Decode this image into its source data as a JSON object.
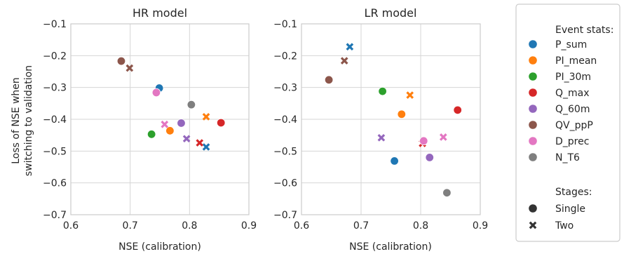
{
  "ylabel_lines": [
    "Loss of NSE when",
    "switching to validation"
  ],
  "legend": {
    "event_header": "Event stats:",
    "stages_header": "Stages:",
    "events": [
      {
        "name": "P_sum",
        "color": "#1f77b4"
      },
      {
        "name": "PI_mean",
        "color": "#ff7f0e"
      },
      {
        "name": "PI_30m",
        "color": "#2ca02c"
      },
      {
        "name": "Q_max",
        "color": "#d62728"
      },
      {
        "name": "Q_60m",
        "color": "#9467bd"
      },
      {
        "name": "QV_ppP",
        "color": "#8c564b"
      },
      {
        "name": "D_prec",
        "color": "#e377c2"
      },
      {
        "name": "N_T6",
        "color": "#7f7f7f"
      }
    ],
    "stages": [
      {
        "name": "Single",
        "marker": "circle"
      },
      {
        "name": "Two",
        "marker": "x"
      }
    ]
  },
  "chart_data": [
    {
      "type": "scatter",
      "title": "HR model",
      "xlabel": "NSE (calibration)",
      "ylabel": "Loss of NSE when switching to validation",
      "xlim": [
        0.6,
        0.9
      ],
      "ylim": [
        -0.7,
        -0.1
      ],
      "xticks": [
        "0.6",
        "0.7",
        "0.8",
        "0.9"
      ],
      "xtick_values": [
        0.6,
        0.7,
        0.8,
        0.9
      ],
      "yticks": [
        "−0.7",
        "−0.6",
        "−0.5",
        "−0.4",
        "−0.3",
        "−0.2",
        "−0.1"
      ],
      "ytick_values": [
        -0.7,
        -0.6,
        -0.5,
        -0.4,
        -0.3,
        -0.2,
        -0.1
      ],
      "grid": true,
      "points": [
        {
          "event": "P_sum",
          "stage": "Single",
          "x": 0.749,
          "y": -0.302
        },
        {
          "event": "P_sum",
          "stage": "Two",
          "x": 0.828,
          "y": -0.487
        },
        {
          "event": "PI_mean",
          "stage": "Single",
          "x": 0.767,
          "y": -0.436
        },
        {
          "event": "PI_mean",
          "stage": "Two",
          "x": 0.828,
          "y": -0.392
        },
        {
          "event": "PI_30m",
          "stage": "Single",
          "x": 0.736,
          "y": -0.447
        },
        {
          "event": "Q_max",
          "stage": "Single",
          "x": 0.853,
          "y": -0.411
        },
        {
          "event": "Q_max",
          "stage": "Two",
          "x": 0.817,
          "y": -0.474
        },
        {
          "event": "Q_60m",
          "stage": "Single",
          "x": 0.786,
          "y": -0.412
        },
        {
          "event": "Q_60m",
          "stage": "Two",
          "x": 0.795,
          "y": -0.461
        },
        {
          "event": "QV_ppP",
          "stage": "Single",
          "x": 0.685,
          "y": -0.217
        },
        {
          "event": "QV_ppP",
          "stage": "Two",
          "x": 0.699,
          "y": -0.239
        },
        {
          "event": "D_prec",
          "stage": "Single",
          "x": 0.744,
          "y": -0.316
        },
        {
          "event": "D_prec",
          "stage": "Two",
          "x": 0.758,
          "y": -0.416
        },
        {
          "event": "N_T6",
          "stage": "Single",
          "x": 0.803,
          "y": -0.354
        }
      ]
    },
    {
      "type": "scatter",
      "title": "LR model",
      "xlabel": "NSE (calibration)",
      "ylabel": "",
      "xlim": [
        0.6,
        0.9
      ],
      "ylim": [
        -0.7,
        -0.1
      ],
      "xticks": [
        "0.6",
        "0.7",
        "0.8",
        "0.9"
      ],
      "xtick_values": [
        0.6,
        0.7,
        0.8,
        0.9
      ],
      "yticks": [
        "−0.7",
        "−0.6",
        "−0.5",
        "−0.4",
        "−0.3",
        "−0.2",
        "−0.1"
      ],
      "ytick_values": [
        -0.7,
        -0.6,
        -0.5,
        -0.4,
        -0.3,
        -0.2,
        -0.1
      ],
      "grid": true,
      "points": [
        {
          "event": "P_sum",
          "stage": "Single",
          "x": 0.756,
          "y": -0.531
        },
        {
          "event": "P_sum",
          "stage": "Two",
          "x": 0.681,
          "y": -0.172
        },
        {
          "event": "PI_mean",
          "stage": "Single",
          "x": 0.768,
          "y": -0.384
        },
        {
          "event": "PI_mean",
          "stage": "Two",
          "x": 0.782,
          "y": -0.324
        },
        {
          "event": "PI_30m",
          "stage": "Single",
          "x": 0.736,
          "y": -0.312
        },
        {
          "event": "Q_max",
          "stage": "Single",
          "x": 0.862,
          "y": -0.371
        },
        {
          "event": "Q_max",
          "stage": "Two",
          "x": 0.803,
          "y": -0.476
        },
        {
          "event": "Q_60m",
          "stage": "Single",
          "x": 0.815,
          "y": -0.52
        },
        {
          "event": "Q_60m",
          "stage": "Two",
          "x": 0.734,
          "y": -0.458
        },
        {
          "event": "QV_ppP",
          "stage": "Single",
          "x": 0.646,
          "y": -0.276
        },
        {
          "event": "QV_ppP",
          "stage": "Two",
          "x": 0.672,
          "y": -0.216
        },
        {
          "event": "D_prec",
          "stage": "Single",
          "x": 0.805,
          "y": -0.468
        },
        {
          "event": "D_prec",
          "stage": "Two",
          "x": 0.838,
          "y": -0.456
        },
        {
          "event": "N_T6",
          "stage": "Single",
          "x": 0.844,
          "y": -0.631
        }
      ]
    }
  ]
}
